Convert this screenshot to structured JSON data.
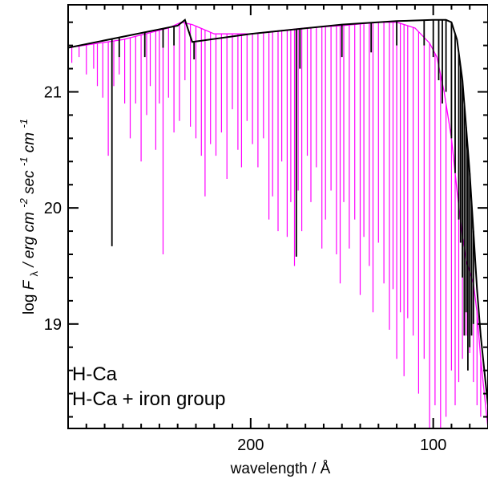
{
  "chart_data": {
    "type": "line",
    "xlabel": "wavelength / Å",
    "ylabel": {
      "prefix": "log ",
      "F": "F",
      "sub": "λ",
      "unit_erg": " / erg cm",
      "exp_cm2": "-2",
      "sec": " sec",
      "exp_sec": "-1",
      "cm": " cm",
      "exp_cm": "-1"
    },
    "x_axis": {
      "direction": "decreasing",
      "xlim": [
        300,
        70
      ],
      "ticks": [
        200,
        100
      ]
    },
    "y_axis": {
      "ylim": [
        18.1,
        21.75
      ],
      "ticks": [
        19,
        20,
        21
      ]
    },
    "legend_placement": "bottom-left",
    "series": [
      {
        "name": "H-Ca",
        "color": "#000000",
        "continuum": [
          [
            300,
            21.38
          ],
          [
            240,
            21.57
          ],
          [
            236,
            21.62
          ],
          [
            232,
            21.43
          ],
          [
            200,
            21.5
          ],
          [
            150,
            21.58
          ],
          [
            120,
            21.61
          ],
          [
            100,
            21.62
          ],
          [
            93,
            21.62
          ],
          [
            90,
            21.6
          ],
          [
            87,
            21.45
          ],
          [
            84,
            21.1
          ],
          [
            82,
            20.7
          ],
          [
            80,
            20.3
          ],
          [
            78,
            19.8
          ],
          [
            76,
            19.3
          ],
          [
            74,
            18.9
          ],
          [
            72,
            18.6
          ],
          [
            70,
            18.3
          ]
        ],
        "absorption_lines": [
          [
            276,
            19.67
          ],
          [
            272,
            21.3
          ],
          [
            258,
            21.3
          ],
          [
            248,
            21.38
          ],
          [
            242,
            21.4
          ],
          [
            231,
            21.28
          ],
          [
            175,
            19.58
          ],
          [
            173,
            21.2
          ],
          [
            150,
            21.3
          ],
          [
            134,
            21.34
          ],
          [
            120,
            21.4
          ],
          [
            105,
            21.4
          ],
          [
            100,
            21.3
          ],
          [
            97,
            21.1
          ],
          [
            95,
            20.9
          ],
          [
            93,
            21.0
          ],
          [
            90,
            20.6
          ],
          [
            88,
            20.3
          ],
          [
            86,
            19.9
          ],
          [
            85,
            19.7
          ],
          [
            84,
            19.4
          ],
          [
            83,
            18.9
          ],
          [
            82,
            19.1
          ],
          [
            81,
            18.6
          ],
          [
            80,
            18.8
          ],
          [
            79,
            18.9
          ],
          [
            78,
            19.0
          ]
        ]
      },
      {
        "name": "H-Ca + iron group",
        "color": "#ff00ff",
        "continuum": [
          [
            300,
            21.38
          ],
          [
            270,
            21.45
          ],
          [
            245,
            21.55
          ],
          [
            238,
            21.6
          ],
          [
            232,
            21.58
          ],
          [
            220,
            21.5
          ],
          [
            200,
            21.5
          ],
          [
            170,
            21.55
          ],
          [
            150,
            21.57
          ],
          [
            130,
            21.6
          ],
          [
            120,
            21.6
          ],
          [
            110,
            21.55
          ],
          [
            102,
            21.42
          ],
          [
            98,
            21.3
          ],
          [
            94,
            21.0
          ],
          [
            90,
            20.6
          ],
          [
            87,
            20.15
          ],
          [
            84,
            19.75
          ],
          [
            82,
            19.55
          ],
          [
            80,
            19.45
          ],
          [
            78,
            19.35
          ],
          [
            76,
            19.1
          ],
          [
            74,
            18.7
          ],
          [
            72,
            18.4
          ],
          [
            70,
            18.1
          ]
        ],
        "absorption_lines": [
          [
            298,
            21.25
          ],
          [
            294,
            21.3
          ],
          [
            290,
            21.15
          ],
          [
            286,
            21.2
          ],
          [
            284,
            21.05
          ],
          [
            281,
            20.95
          ],
          [
            278,
            20.45
          ],
          [
            275,
            21.05
          ],
          [
            272,
            21.15
          ],
          [
            269,
            20.9
          ],
          [
            266,
            20.6
          ],
          [
            263,
            20.9
          ],
          [
            260,
            20.4
          ],
          [
            257,
            20.8
          ],
          [
            255,
            21.05
          ],
          [
            252,
            20.5
          ],
          [
            250,
            20.9
          ],
          [
            248,
            19.6
          ],
          [
            245,
            20.95
          ],
          [
            242,
            20.65
          ],
          [
            239,
            20.75
          ],
          [
            236,
            21.1
          ],
          [
            233,
            20.7
          ],
          [
            230,
            20.6
          ],
          [
            227,
            20.45
          ],
          [
            225,
            20.1
          ],
          [
            222,
            20.55
          ],
          [
            219,
            20.45
          ],
          [
            216,
            20.65
          ],
          [
            213,
            20.25
          ],
          [
            210,
            20.85
          ],
          [
            207,
            20.5
          ],
          [
            205,
            20.35
          ],
          [
            202,
            20.75
          ],
          [
            199,
            20.55
          ],
          [
            196,
            20.35
          ],
          [
            193,
            20.6
          ],
          [
            190,
            19.9
          ],
          [
            188,
            20.1
          ],
          [
            185,
            19.8
          ],
          [
            183,
            20.4
          ],
          [
            180,
            19.75
          ],
          [
            178,
            20.05
          ],
          [
            176,
            19.5
          ],
          [
            174,
            20.15
          ],
          [
            172,
            19.8
          ],
          [
            169,
            20.45
          ],
          [
            167,
            20.05
          ],
          [
            164,
            20.35
          ],
          [
            161,
            19.65
          ],
          [
            159,
            19.9
          ],
          [
            156,
            20.15
          ],
          [
            153,
            19.6
          ],
          [
            151,
            19.35
          ],
          [
            149,
            20.05
          ],
          [
            146,
            19.65
          ],
          [
            143,
            19.9
          ],
          [
            140,
            19.25
          ],
          [
            138,
            19.75
          ],
          [
            135,
            19.5
          ],
          [
            133,
            19.1
          ],
          [
            130,
            19.7
          ],
          [
            127,
            19.35
          ],
          [
            124,
            18.95
          ],
          [
            122,
            19.3
          ],
          [
            120,
            18.7
          ],
          [
            118,
            19.1
          ],
          [
            116,
            18.55
          ],
          [
            114,
            19.05
          ],
          [
            111,
            18.9
          ],
          [
            108,
            18.4
          ],
          [
            105,
            18.7
          ],
          [
            102,
            18.1
          ],
          [
            99,
            18.3
          ],
          [
            96,
            18.1
          ],
          [
            93,
            18.2
          ],
          [
            90,
            18.6
          ],
          [
            88,
            18.3
          ],
          [
            86,
            18.5
          ],
          [
            84,
            18.7
          ],
          [
            82,
            18.9
          ],
          [
            80,
            18.75
          ],
          [
            78,
            18.5
          ],
          [
            76,
            18.3
          ],
          [
            74,
            18.2
          ]
        ]
      }
    ]
  }
}
